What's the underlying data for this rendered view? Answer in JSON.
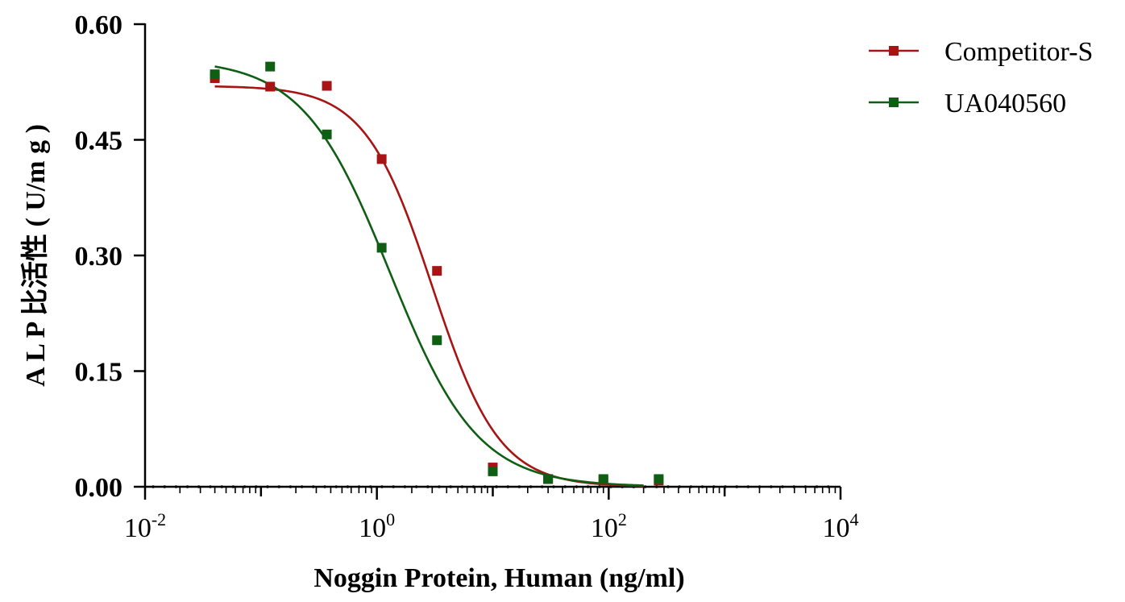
{
  "chart_data": {
    "type": "scatter",
    "title": "",
    "xlabel": "Noggin Protein, Human (ng/ml)",
    "ylabel": "A L P 比活性 ( U/m g )",
    "x_scale": "log10",
    "xlim": [
      0.01,
      10000
    ],
    "ylim": [
      0,
      0.6
    ],
    "x_ticks": [
      {
        "base": "10",
        "exp": "-2"
      },
      {
        "base": "10",
        "exp": "0"
      },
      {
        "base": "10",
        "exp": "2"
      },
      {
        "base": "10",
        "exp": "4"
      }
    ],
    "y_ticks": [
      "0.00",
      "0.15",
      "0.30",
      "0.45",
      "0.60"
    ],
    "y_tick_values": [
      0,
      0.15,
      0.3,
      0.45,
      0.6
    ],
    "grid": false,
    "legend_position": "top-right",
    "series": [
      {
        "name": "Competitor-S",
        "color": "#a81313",
        "marker": "square",
        "x": [
          0.04,
          0.12,
          0.37,
          1.1,
          3.3,
          10,
          30,
          90,
          270
        ],
        "y": [
          0.53,
          0.519,
          0.52,
          0.425,
          0.28,
          0.025,
          0.01,
          0.008,
          0.008
        ],
        "fit": {
          "top": 0.52,
          "bottom": 0.0,
          "ec50": 3.0,
          "hill": 1.5
        }
      },
      {
        "name": "UA040560",
        "color": "#0e5e14",
        "marker": "square",
        "x": [
          0.04,
          0.12,
          0.37,
          1.1,
          3.3,
          10,
          30,
          90,
          270
        ],
        "y": [
          0.535,
          0.545,
          0.457,
          0.31,
          0.19,
          0.02,
          0.01,
          0.01,
          0.01
        ],
        "fit": {
          "top": 0.555,
          "bottom": 0.0,
          "ec50": 1.3,
          "hill": 1.15
        }
      }
    ]
  }
}
